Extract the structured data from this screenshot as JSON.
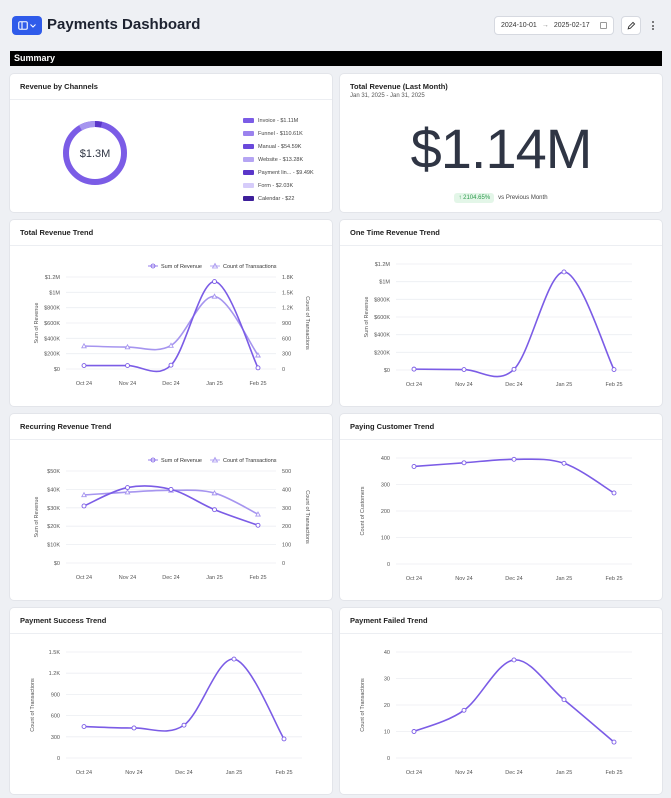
{
  "header": {
    "title": "Payments Dashboard",
    "date_start": "2024-10-01",
    "date_arrow": "→",
    "date_end": "2025-02-17"
  },
  "summary_label": "Summary",
  "colors": {
    "accent": "#7b5ce6",
    "accent_light": "#a695ef",
    "brand_blue": "#2f5bea"
  },
  "revenue_channels": {
    "title": "Revenue by Channels",
    "center_value": "$1.3M",
    "legend": [
      {
        "label": "Invoice - $1.11M",
        "color": "#7b5ce6"
      },
      {
        "label": "Funnel - $110.61K",
        "color": "#9b82ee"
      },
      {
        "label": "Manual - $54.59K",
        "color": "#6a49db"
      },
      {
        "label": "Website - $13.28K",
        "color": "#b5a5f3"
      },
      {
        "label": "Payment lin... - $9.49K",
        "color": "#5a36c9"
      },
      {
        "label": "Form - $2.03K",
        "color": "#d6ccfa"
      },
      {
        "label": "Calendar - $22",
        "color": "#3d1f9a"
      }
    ]
  },
  "total_revenue": {
    "title": "Total Revenue (Last Month)",
    "subtitle": "Jan 31, 2025 - Jan 31, 2025",
    "value": "$1.14M",
    "change": "↑ 2104.65%",
    "change_label": "vs Previous Month"
  },
  "chart_data": [
    {
      "id": "total_revenue_trend",
      "type": "line",
      "title": "Total Revenue Trend",
      "categories": [
        "Oct 24",
        "Nov 24",
        "Dec 24",
        "Jan 25",
        "Feb 25"
      ],
      "series": [
        {
          "name": "Sum of Revenue",
          "values": [
            45000,
            45000,
            50000,
            1140000,
            15000
          ]
        },
        {
          "name": "Count of Transactions",
          "values": [
            450,
            430,
            460,
            1420,
            270
          ]
        }
      ],
      "ylabel": "Sum of Revenue",
      "ylabel_right": "Count of Transactions",
      "ylim": [
        0,
        1200000
      ],
      "ylim_right": [
        0,
        1800
      ],
      "yticks": [
        "$0",
        "$200K",
        "$400K",
        "$600K",
        "$800K",
        "$1M",
        "$1.2M"
      ],
      "yticks_right": [
        "0",
        "300",
        "600",
        "900",
        "1.2K",
        "1.5K",
        "1.8K"
      ],
      "legend": [
        "Sum of Revenue",
        "Count of Transactions"
      ]
    },
    {
      "id": "one_time_revenue_trend",
      "type": "line",
      "title": "One Time Revenue Trend",
      "categories": [
        "Oct 24",
        "Nov 24",
        "Dec 24",
        "Jan 25",
        "Feb 25"
      ],
      "series": [
        {
          "name": "Sum of Revenue",
          "values": [
            10000,
            5000,
            8000,
            1110000,
            5000
          ]
        }
      ],
      "ylabel": "Sum of Revenue",
      "ylim": [
        0,
        1200000
      ],
      "yticks": [
        "$0",
        "$200K",
        "$400K",
        "$600K",
        "$800K",
        "$1M",
        "$1.2M"
      ]
    },
    {
      "id": "recurring_revenue_trend",
      "type": "line",
      "title": "Recurring Revenue Trend",
      "categories": [
        "Oct 24",
        "Nov 24",
        "Dec 24",
        "Jan 25",
        "Feb 25"
      ],
      "series": [
        {
          "name": "Sum of Revenue",
          "values": [
            31000,
            41000,
            40000,
            29000,
            20500
          ]
        },
        {
          "name": "Count of Transactions",
          "values": [
            370,
            385,
            395,
            380,
            265
          ]
        }
      ],
      "ylabel": "Sum of Revenue",
      "ylabel_right": "Count of Transactions",
      "ylim": [
        0,
        50000
      ],
      "ylim_right": [
        0,
        500
      ],
      "yticks": [
        "$0",
        "$10K",
        "$20K",
        "$30K",
        "$40K",
        "$50K"
      ],
      "yticks_right": [
        "0",
        "100",
        "200",
        "300",
        "400",
        "500"
      ],
      "legend": [
        "Sum of Revenue",
        "Count of Transactions"
      ]
    },
    {
      "id": "paying_customer_trend",
      "type": "line",
      "title": "Paying Customer Trend",
      "categories": [
        "Oct 24",
        "Nov 24",
        "Dec 24",
        "Jan 25",
        "Feb 25"
      ],
      "series": [
        {
          "name": "Paying Customers",
          "values": [
            368,
            382,
            395,
            380,
            268
          ]
        }
      ],
      "ylabel": "Count of Customers",
      "ylim": [
        0,
        400
      ],
      "yticks": [
        "0",
        "100",
        "200",
        "300",
        "400"
      ]
    },
    {
      "id": "payment_success_trend",
      "type": "line",
      "title": "Payment Success Trend",
      "categories": [
        "Oct 24",
        "Nov 24",
        "Dec 24",
        "Jan 25",
        "Feb 25"
      ],
      "series": [
        {
          "name": "Count of Transactions",
          "values": [
            445,
            425,
            465,
            1400,
            270
          ]
        }
      ],
      "ylabel": "Count of Transactions",
      "ylim": [
        0,
        1500
      ],
      "yticks": [
        "0",
        "300",
        "600",
        "900",
        "1.2K",
        "1.5K"
      ]
    },
    {
      "id": "payment_failed_trend",
      "type": "line",
      "title": "Payment Failed Trend",
      "categories": [
        "Oct 24",
        "Nov 24",
        "Dec 24",
        "Jan 25",
        "Feb 25"
      ],
      "series": [
        {
          "name": "Count of Transactions",
          "values": [
            10,
            18,
            37,
            22,
            6
          ]
        }
      ],
      "ylabel": "Count of Transactions",
      "ylim": [
        0,
        40
      ],
      "yticks": [
        "0",
        "10",
        "20",
        "30",
        "40"
      ]
    }
  ]
}
